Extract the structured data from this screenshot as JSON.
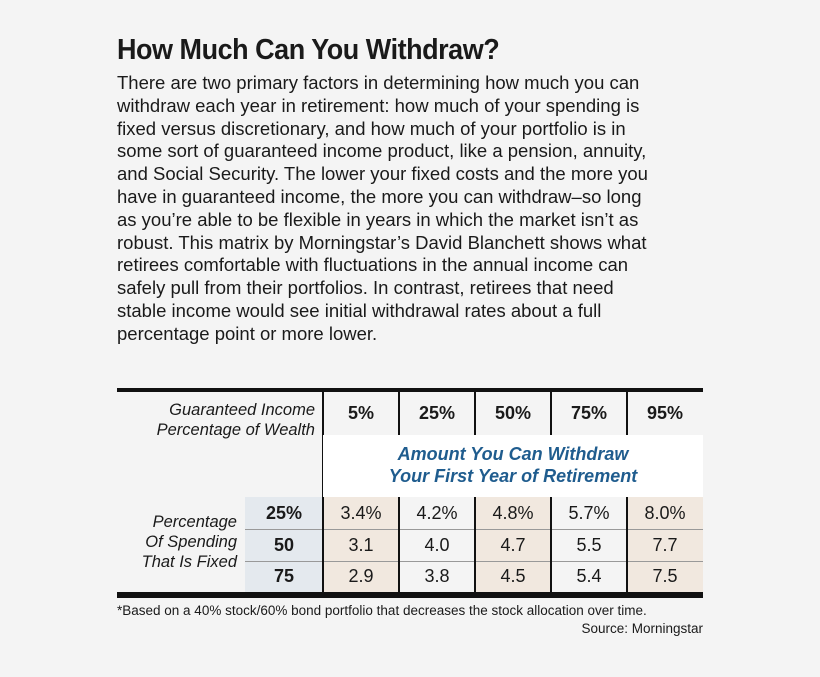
{
  "title": "How Much Can You Withdraw?",
  "body_lines": [
    "There are two primary factors in determining how much you can",
    "withdraw each year in retirement: how much of your spending is",
    "fixed versus discretionary, and how much of your portfolio is in",
    "some sort of guaranteed income product, like a pension, annuity,",
    "and Social Security. The lower your fixed costs and the more you",
    "have in guaranteed income, the more you can withdraw–so long",
    "as you’re able to be flexible in years in which the market isn’t as",
    "robust. This matrix by Morningstar’s David Blanchett shows what",
    "retirees comfortable with fluctuations in the annual income can",
    "safely pull from their portfolios. In contrast, retirees that need",
    "stable income would see initial withdrawal rates about a full",
    "percentage point or more lower."
  ],
  "table": {
    "col_axis_label": [
      "Guaranteed Income",
      "Percentage of Wealth"
    ],
    "columns": [
      "5%",
      "25%",
      "50%",
      "75%",
      "95%"
    ],
    "band_title": [
      "Amount You Can Withdraw",
      "Your First Year of Retirement"
    ],
    "row_axis_label": [
      "Percentage",
      "Of Spending",
      "That Is Fixed"
    ],
    "rows": [
      {
        "label": "25%",
        "values": [
          "3.4%",
          "4.2%",
          "4.8%",
          "5.7%",
          "8.0%"
        ]
      },
      {
        "label": "50",
        "values": [
          "3.1",
          "4.0",
          "4.7",
          "5.5",
          "7.7"
        ]
      },
      {
        "label": "75",
        "values": [
          "2.9",
          "3.8",
          "4.5",
          "5.4",
          "7.5"
        ]
      }
    ]
  },
  "footnote": "*Based on a 40% stock/60% bond portfolio that decreases the stock allocation over time.",
  "source": "Source: Morningstar",
  "colors": {
    "band_text": "#1f5c8e",
    "tan": "#f1e8df",
    "row_header": "#e4e9ee"
  }
}
